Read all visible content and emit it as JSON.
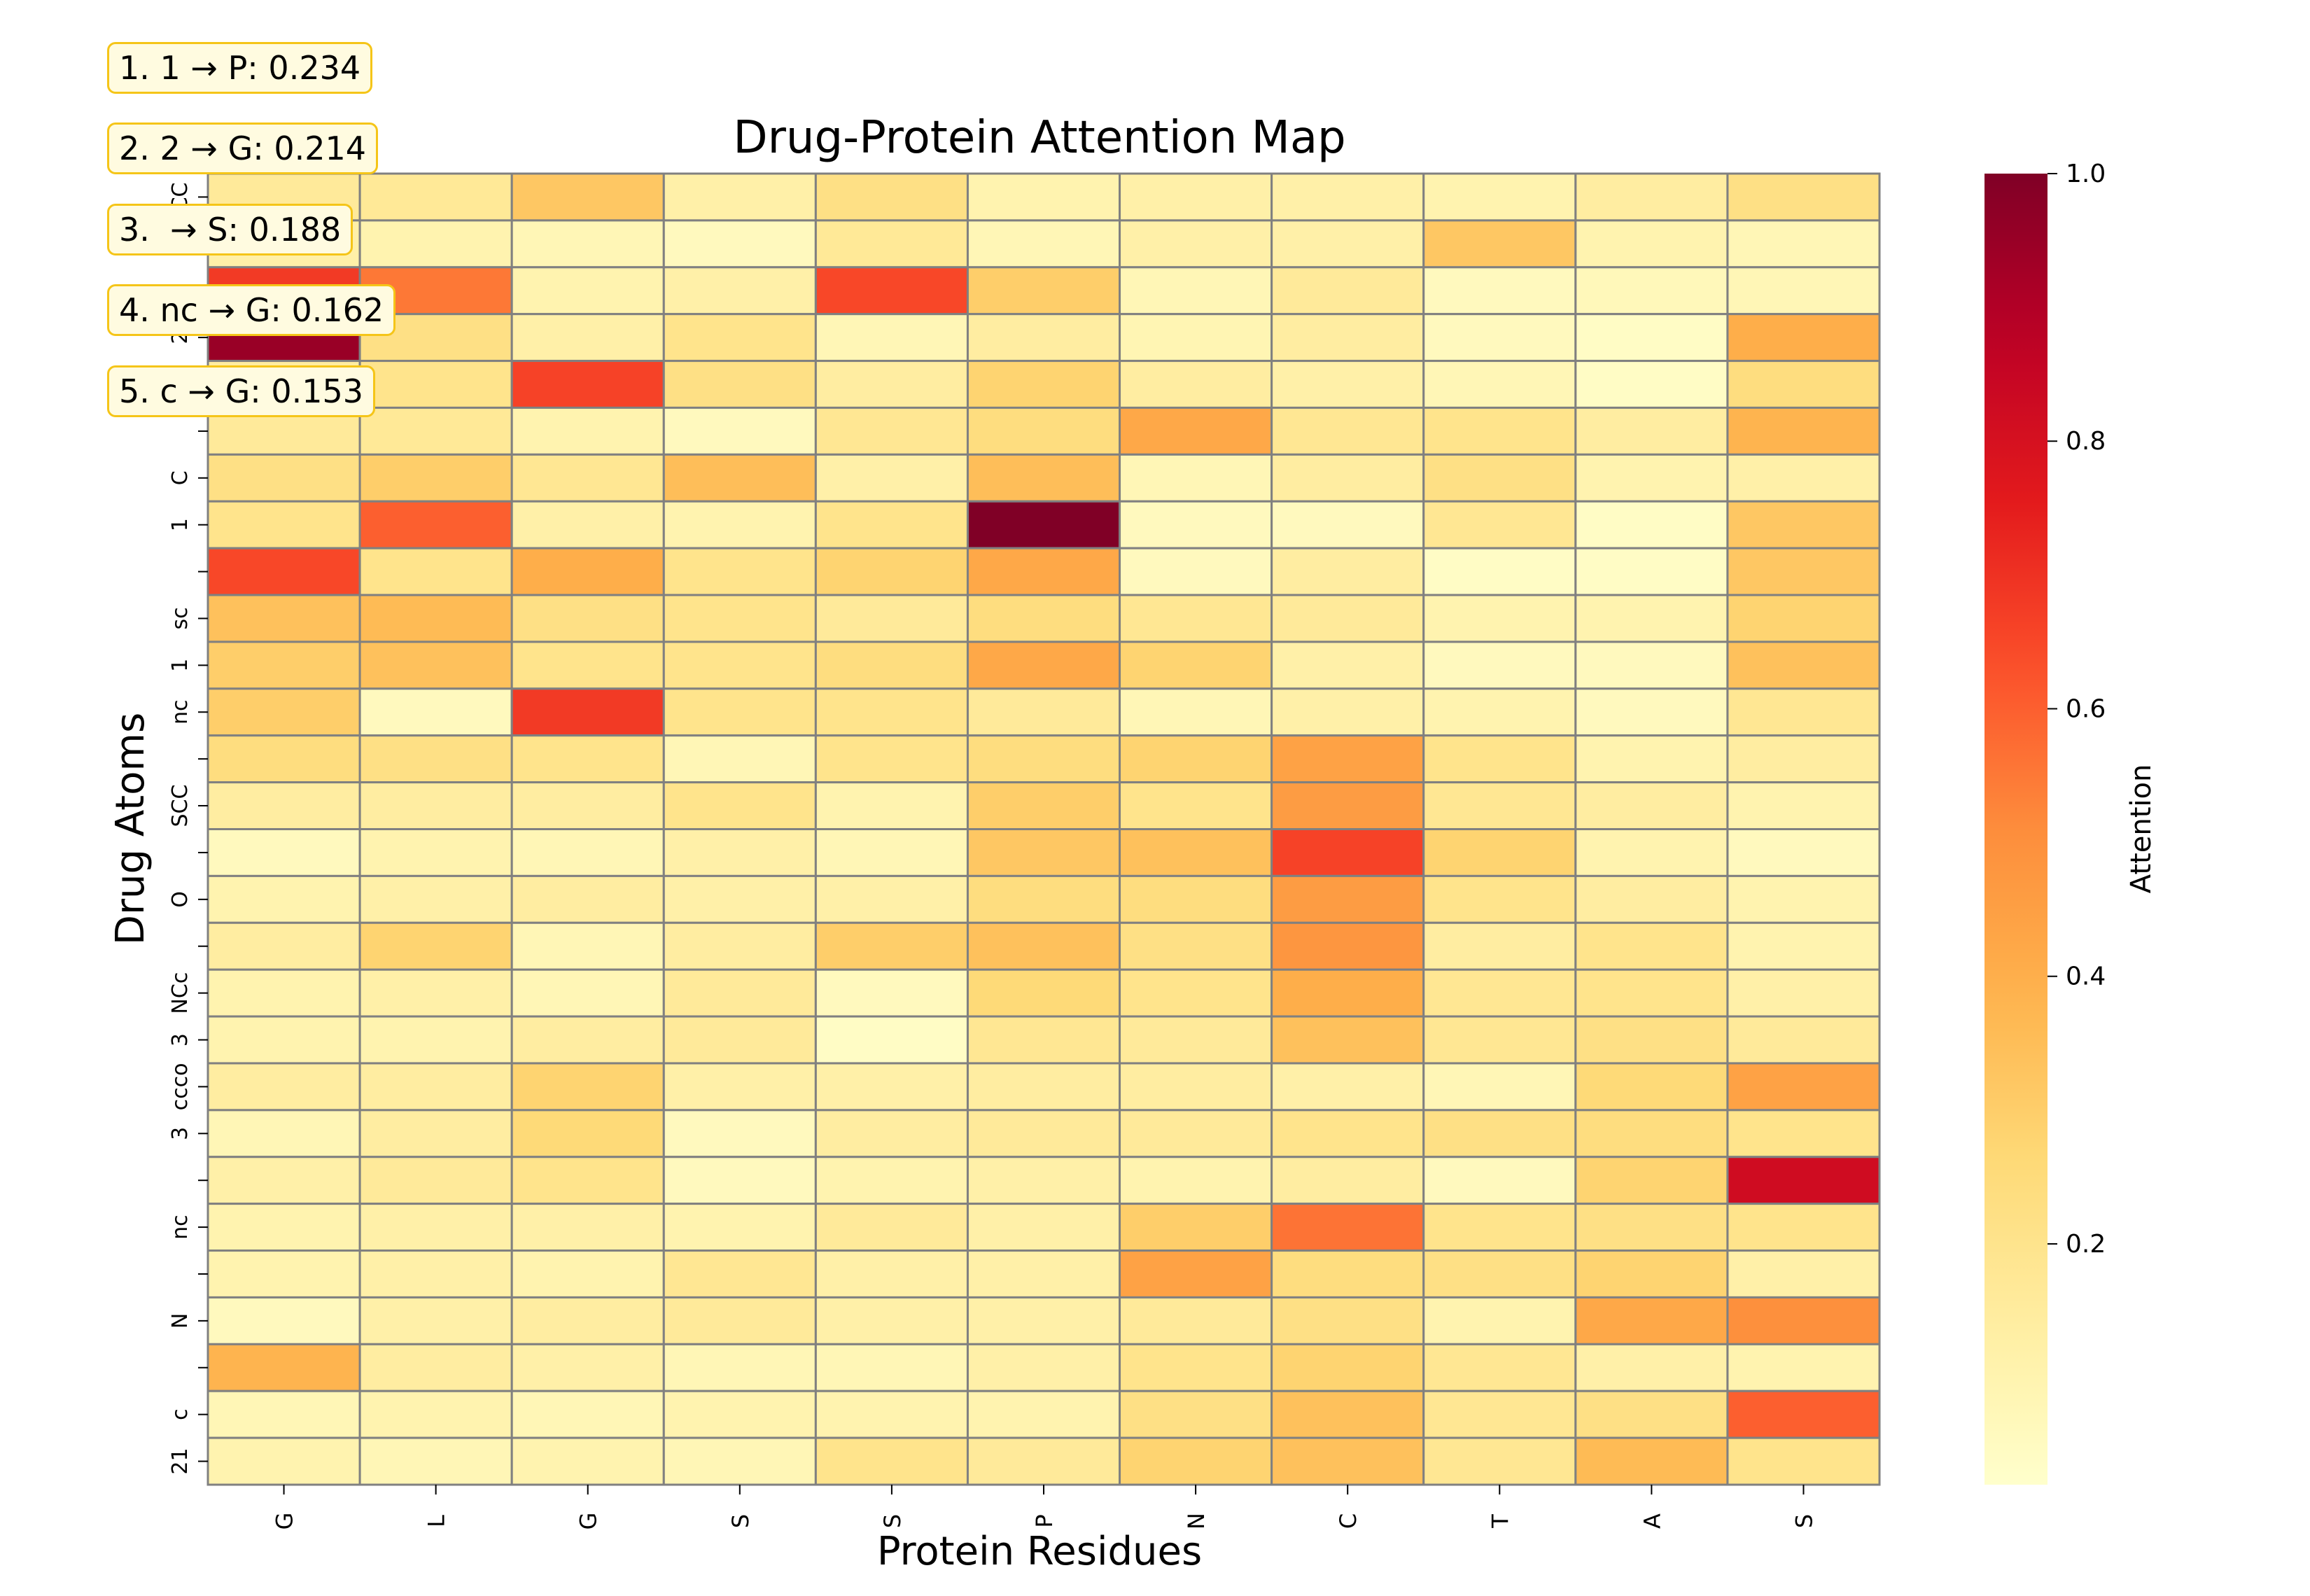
{
  "chart_data": {
    "type": "heatmap",
    "title": "Drug-Protein Attention Map",
    "xlabel": "Protein Residues",
    "ylabel": "Drug Atoms",
    "x_tick_labels": [
      "G",
      "L",
      "G",
      "S",
      "S",
      "P",
      "N",
      "C",
      "T",
      "A",
      "S"
    ],
    "y_tick_labels": [
      "CC",
      "",
      "c",
      "2",
      "",
      "",
      "C",
      "1",
      "",
      "sc",
      "1",
      "nc",
      "",
      "SCC",
      "",
      "O",
      "",
      "NCc",
      "3",
      "ccco",
      "3",
      "",
      "nc",
      "",
      "N",
      "",
      "c",
      "21"
    ],
    "colorbar": {
      "label": "Attention",
      "ticks": [
        0.2,
        0.4,
        0.6,
        0.8,
        1.0
      ],
      "tick_labels": [
        "0.2",
        "0.4",
        "0.6",
        "0.8",
        "1.0"
      ],
      "range": [
        0.02,
        1.0
      ],
      "colormap": "YlOrRd"
    },
    "values": [
      [
        0.16,
        0.17,
        0.32,
        0.12,
        0.22,
        0.1,
        0.12,
        0.12,
        0.1,
        0.14,
        0.22
      ],
      [
        0.12,
        0.1,
        0.08,
        0.06,
        0.17,
        0.08,
        0.12,
        0.12,
        0.32,
        0.1,
        0.08
      ],
      [
        0.68,
        0.55,
        0.1,
        0.12,
        0.65,
        0.3,
        0.08,
        0.16,
        0.06,
        0.07,
        0.08
      ],
      [
        0.95,
        0.22,
        0.12,
        0.2,
        0.08,
        0.14,
        0.09,
        0.14,
        0.06,
        0.04,
        0.4
      ],
      [
        0.14,
        0.2,
        0.66,
        0.22,
        0.14,
        0.28,
        0.14,
        0.12,
        0.08,
        0.04,
        0.24
      ],
      [
        0.16,
        0.17,
        0.1,
        0.06,
        0.18,
        0.24,
        0.42,
        0.18,
        0.2,
        0.14,
        0.38
      ],
      [
        0.22,
        0.3,
        0.18,
        0.35,
        0.12,
        0.35,
        0.08,
        0.14,
        0.22,
        0.1,
        0.12
      ],
      [
        0.2,
        0.6,
        0.12,
        0.1,
        0.2,
        1.0,
        0.06,
        0.06,
        0.18,
        0.04,
        0.32
      ],
      [
        0.65,
        0.2,
        0.4,
        0.2,
        0.28,
        0.42,
        0.06,
        0.14,
        0.04,
        0.04,
        0.32
      ],
      [
        0.34,
        0.36,
        0.22,
        0.2,
        0.16,
        0.24,
        0.18,
        0.16,
        0.1,
        0.1,
        0.28
      ],
      [
        0.3,
        0.34,
        0.2,
        0.2,
        0.24,
        0.42,
        0.28,
        0.12,
        0.06,
        0.06,
        0.34
      ],
      [
        0.3,
        0.06,
        0.68,
        0.2,
        0.2,
        0.16,
        0.08,
        0.12,
        0.1,
        0.06,
        0.18
      ],
      [
        0.24,
        0.22,
        0.2,
        0.08,
        0.2,
        0.24,
        0.28,
        0.44,
        0.2,
        0.1,
        0.14
      ],
      [
        0.14,
        0.14,
        0.14,
        0.2,
        0.1,
        0.3,
        0.2,
        0.46,
        0.18,
        0.14,
        0.1
      ],
      [
        0.06,
        0.1,
        0.08,
        0.12,
        0.08,
        0.32,
        0.34,
        0.66,
        0.28,
        0.1,
        0.06
      ],
      [
        0.1,
        0.12,
        0.14,
        0.12,
        0.12,
        0.24,
        0.24,
        0.46,
        0.2,
        0.14,
        0.1
      ],
      [
        0.14,
        0.28,
        0.08,
        0.14,
        0.3,
        0.34,
        0.22,
        0.48,
        0.14,
        0.2,
        0.1
      ],
      [
        0.1,
        0.12,
        0.08,
        0.16,
        0.06,
        0.26,
        0.2,
        0.4,
        0.18,
        0.2,
        0.12
      ],
      [
        0.1,
        0.1,
        0.14,
        0.16,
        0.04,
        0.18,
        0.16,
        0.34,
        0.18,
        0.22,
        0.16
      ],
      [
        0.14,
        0.14,
        0.28,
        0.12,
        0.12,
        0.14,
        0.14,
        0.12,
        0.08,
        0.26,
        0.44
      ],
      [
        0.08,
        0.14,
        0.26,
        0.06,
        0.14,
        0.16,
        0.16,
        0.2,
        0.22,
        0.24,
        0.2
      ],
      [
        0.12,
        0.16,
        0.2,
        0.06,
        0.1,
        0.12,
        0.1,
        0.14,
        0.06,
        0.28,
        0.82
      ],
      [
        0.1,
        0.12,
        0.12,
        0.1,
        0.16,
        0.12,
        0.3,
        0.56,
        0.2,
        0.22,
        0.2
      ],
      [
        0.1,
        0.12,
        0.1,
        0.18,
        0.12,
        0.12,
        0.44,
        0.24,
        0.22,
        0.28,
        0.12
      ],
      [
        0.06,
        0.12,
        0.14,
        0.16,
        0.12,
        0.12,
        0.16,
        0.22,
        0.1,
        0.42,
        0.5
      ],
      [
        0.38,
        0.14,
        0.12,
        0.08,
        0.08,
        0.12,
        0.2,
        0.28,
        0.18,
        0.12,
        0.1
      ],
      [
        0.08,
        0.1,
        0.08,
        0.1,
        0.1,
        0.1,
        0.22,
        0.34,
        0.18,
        0.22,
        0.6
      ],
      [
        0.1,
        0.08,
        0.1,
        0.08,
        0.2,
        0.16,
        0.28,
        0.34,
        0.18,
        0.36,
        0.2
      ]
    ],
    "annotations": [
      "1. 1 → P: 0.234",
      "2. 2 → G: 0.214",
      "3.  → S: 0.188",
      "4. nc → G: 0.162",
      "5. c → G: 0.153"
    ]
  }
}
